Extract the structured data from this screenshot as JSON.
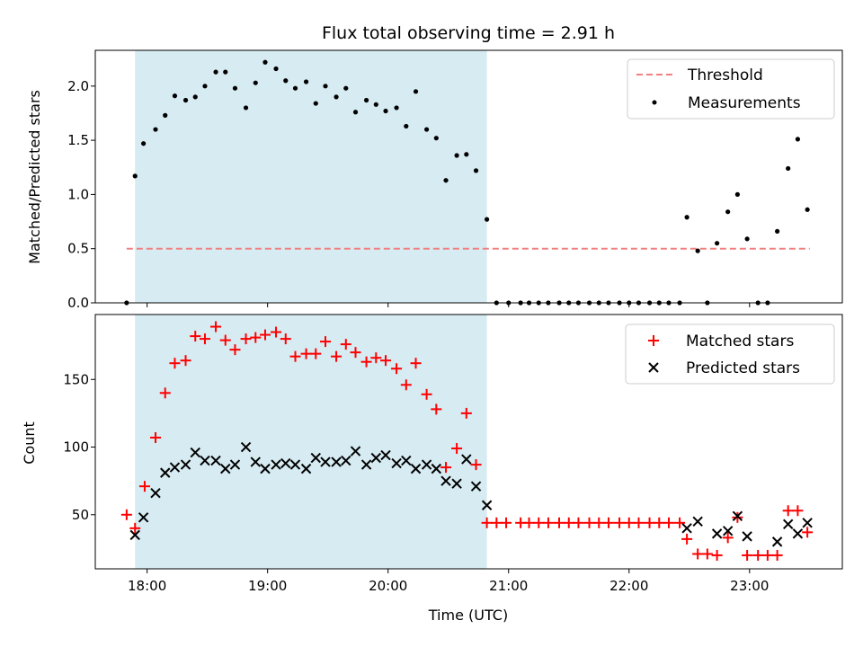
{
  "chart_data": [
    {
      "type": "scatter",
      "title": "Flux total observing time = 2.91 h",
      "ylabel": "Matched/Predicted stars",
      "ylim": [
        0,
        2.33
      ],
      "yticks": [
        0.0,
        0.5,
        1.0,
        1.5,
        2.0
      ],
      "ytick_labels": [
        "0.0",
        "0.5",
        "1.0",
        "1.5",
        "2.0"
      ],
      "xlim": [
        17.57,
        23.77
      ],
      "xticks": [
        18,
        19,
        20,
        21,
        22,
        23
      ],
      "observing_window": [
        17.9,
        20.82
      ],
      "threshold": {
        "name": "Threshold",
        "y": 0.5,
        "x": [
          17.83,
          23.5
        ],
        "color": "#f08080"
      },
      "legend": {
        "placement": "top-right",
        "entries": [
          "Threshold",
          "Measurements"
        ]
      },
      "series": [
        {
          "name": "Measurements",
          "color": "#000000",
          "x": [
            17.83,
            17.9,
            17.97,
            18.07,
            18.15,
            18.23,
            18.32,
            18.4,
            18.48,
            18.57,
            18.65,
            18.73,
            18.82,
            18.9,
            18.98,
            19.07,
            19.15,
            19.23,
            19.32,
            19.4,
            19.48,
            19.57,
            19.65,
            19.73,
            19.82,
            19.9,
            19.98,
            20.07,
            20.15,
            20.23,
            20.32,
            20.4,
            20.48,
            20.57,
            20.65,
            20.73,
            20.82,
            20.9,
            21.0,
            21.1,
            21.17,
            21.25,
            21.33,
            21.42,
            21.5,
            21.58,
            21.67,
            21.75,
            21.83,
            21.92,
            22.0,
            22.08,
            22.17,
            22.25,
            22.33,
            22.42,
            22.48,
            22.57,
            22.65,
            22.73,
            22.82,
            22.9,
            22.98,
            23.07,
            23.15,
            23.23,
            23.32,
            23.4,
            23.48
          ],
          "y": [
            0.0,
            1.17,
            1.47,
            1.6,
            1.73,
            1.91,
            1.87,
            1.9,
            2.0,
            2.13,
            2.13,
            1.98,
            1.8,
            2.03,
            2.22,
            2.16,
            2.05,
            1.98,
            2.04,
            1.84,
            2.0,
            1.9,
            1.98,
            1.76,
            1.87,
            1.83,
            1.77,
            1.8,
            1.63,
            1.95,
            1.6,
            1.52,
            1.13,
            1.36,
            1.37,
            1.22,
            0.77,
            0.0,
            0.0,
            0.0,
            0.0,
            0.0,
            0.0,
            0.0,
            0.0,
            0.0,
            0.0,
            0.0,
            0.0,
            0.0,
            0.0,
            0.0,
            0.0,
            0.0,
            0.0,
            0.0,
            0.79,
            0.48,
            0.0,
            0.55,
            0.84,
            1.0,
            0.59,
            0.0,
            0.0,
            0.66,
            1.24,
            1.51,
            0.86
          ]
        }
      ]
    },
    {
      "type": "scatter",
      "ylabel": "Count",
      "xlabel": "Time (UTC)",
      "ylim": [
        10,
        198
      ],
      "yticks": [
        50,
        100,
        150
      ],
      "ytick_labels": [
        "50",
        "100",
        "150"
      ],
      "xlim": [
        17.57,
        23.77
      ],
      "xticks": [
        18,
        19,
        20,
        21,
        22,
        23
      ],
      "xtick_labels": [
        "18:00",
        "19:00",
        "20:00",
        "21:00",
        "22:00",
        "23:00"
      ],
      "observing_window": [
        17.9,
        20.82
      ],
      "legend": {
        "placement": "top-right",
        "entries": [
          "Matched stars",
          "Predicted stars"
        ]
      },
      "series": [
        {
          "name": "Matched stars",
          "marker": "plus",
          "color": "#ff0000",
          "x": [
            17.83,
            17.9,
            17.98,
            18.07,
            18.15,
            18.23,
            18.32,
            18.4,
            18.48,
            18.57,
            18.65,
            18.73,
            18.82,
            18.9,
            18.98,
            19.07,
            19.15,
            19.23,
            19.32,
            19.4,
            19.48,
            19.57,
            19.65,
            19.73,
            19.82,
            19.9,
            19.98,
            20.07,
            20.15,
            20.23,
            20.32,
            20.4,
            20.48,
            20.57,
            20.65,
            20.73,
            20.82,
            20.9,
            20.98,
            21.1,
            21.17,
            21.25,
            21.33,
            21.42,
            21.5,
            21.58,
            21.67,
            21.75,
            21.83,
            21.92,
            22.0,
            22.08,
            22.17,
            22.25,
            22.33,
            22.42,
            22.48,
            22.57,
            22.65,
            22.73,
            22.82,
            22.9,
            22.98,
            23.07,
            23.15,
            23.23,
            23.32,
            23.4,
            23.48
          ],
          "y": [
            50,
            40,
            71,
            107,
            140,
            162,
            164,
            182,
            180,
            189,
            179,
            172,
            180,
            181,
            183,
            185,
            180,
            167,
            169,
            169,
            178,
            167,
            176,
            170,
            163,
            166,
            164,
            158,
            146,
            162,
            139,
            128,
            85,
            99,
            125,
            87,
            44,
            44,
            44,
            44,
            44,
            44,
            44,
            44,
            44,
            44,
            44,
            44,
            44,
            44,
            44,
            44,
            44,
            44,
            44,
            44,
            32,
            21,
            21,
            20,
            33,
            48,
            20,
            20,
            20,
            20,
            53,
            53,
            37
          ]
        },
        {
          "name": "Predicted stars",
          "marker": "x",
          "color": "#000000",
          "x": [
            17.9,
            17.97,
            18.07,
            18.15,
            18.23,
            18.32,
            18.4,
            18.48,
            18.57,
            18.65,
            18.73,
            18.82,
            18.9,
            18.98,
            19.07,
            19.15,
            19.23,
            19.32,
            19.4,
            19.48,
            19.57,
            19.65,
            19.73,
            19.82,
            19.9,
            19.98,
            20.07,
            20.15,
            20.23,
            20.32,
            20.4,
            20.48,
            20.57,
            20.65,
            20.73,
            20.82,
            22.48,
            22.57,
            22.73,
            22.82,
            22.9,
            22.98,
            23.23,
            23.32,
            23.4,
            23.48
          ],
          "y": [
            35,
            48,
            66,
            81,
            85,
            87,
            96,
            90,
            90,
            84,
            87,
            100,
            89,
            84,
            87,
            88,
            87,
            84,
            92,
            89,
            89,
            90,
            97,
            87,
            92,
            94,
            88,
            90,
            84,
            87,
            84,
            75,
            73,
            91,
            71,
            57,
            40,
            45,
            36,
            38,
            49,
            34,
            30,
            43,
            36,
            44
          ]
        }
      ]
    }
  ]
}
